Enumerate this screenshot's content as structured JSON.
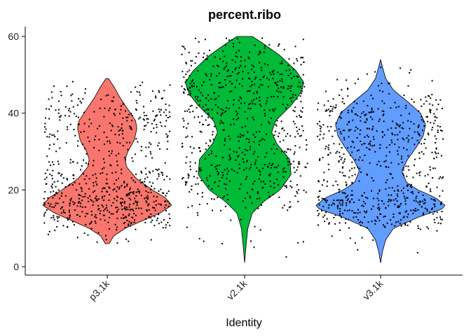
{
  "chart_data": {
    "type": "violin",
    "title": "percent.ribo",
    "xlabel": "Identity",
    "ylabel": "",
    "ylim": [
      0,
      60
    ],
    "yticks": [
      0,
      20,
      40,
      60
    ],
    "grid": false,
    "legend": "none",
    "jitter_points": true,
    "categories": [
      "p3.1k",
      "v2.1k",
      "v3.1k"
    ],
    "series": [
      {
        "category": "p3.1k",
        "color": "#F8766D",
        "min": 6,
        "max": 49,
        "density_profile": [
          [
            6,
            0.03
          ],
          [
            8,
            0.1
          ],
          [
            10,
            0.28
          ],
          [
            12,
            0.55
          ],
          [
            14,
            0.82
          ],
          [
            16,
            1.0
          ],
          [
            18,
            0.9
          ],
          [
            20,
            0.7
          ],
          [
            23,
            0.45
          ],
          [
            26,
            0.3
          ],
          [
            28,
            0.28
          ],
          [
            30,
            0.32
          ],
          [
            33,
            0.42
          ],
          [
            36,
            0.46
          ],
          [
            38,
            0.44
          ],
          [
            41,
            0.32
          ],
          [
            44,
            0.2
          ],
          [
            47,
            0.1
          ],
          [
            49,
            0.02
          ]
        ]
      },
      {
        "category": "v2.1k",
        "color": "#00BA38",
        "min": 1,
        "max": 60,
        "density_profile": [
          [
            1,
            0.0
          ],
          [
            5,
            0.02
          ],
          [
            10,
            0.05
          ],
          [
            14,
            0.12
          ],
          [
            17,
            0.3
          ],
          [
            20,
            0.55
          ],
          [
            24,
            0.72
          ],
          [
            28,
            0.7
          ],
          [
            32,
            0.5
          ],
          [
            35,
            0.42
          ],
          [
            38,
            0.48
          ],
          [
            42,
            0.72
          ],
          [
            45,
            0.86
          ],
          [
            48,
            0.92
          ],
          [
            51,
            0.8
          ],
          [
            55,
            0.55
          ],
          [
            58,
            0.3
          ],
          [
            60,
            0.12
          ]
        ]
      },
      {
        "category": "v3.1k",
        "color": "#619CFF",
        "min": 1,
        "max": 54,
        "density_profile": [
          [
            1,
            0.0
          ],
          [
            4,
            0.03
          ],
          [
            7,
            0.08
          ],
          [
            10,
            0.2
          ],
          [
            13,
            0.6
          ],
          [
            15,
            0.95
          ],
          [
            16,
            1.0
          ],
          [
            18,
            0.85
          ],
          [
            20,
            0.58
          ],
          [
            22,
            0.4
          ],
          [
            25,
            0.33
          ],
          [
            28,
            0.42
          ],
          [
            31,
            0.55
          ],
          [
            34,
            0.66
          ],
          [
            37,
            0.7
          ],
          [
            40,
            0.62
          ],
          [
            43,
            0.42
          ],
          [
            46,
            0.2
          ],
          [
            49,
            0.08
          ],
          [
            52,
            0.03
          ],
          [
            54,
            0.0
          ]
        ]
      }
    ]
  }
}
